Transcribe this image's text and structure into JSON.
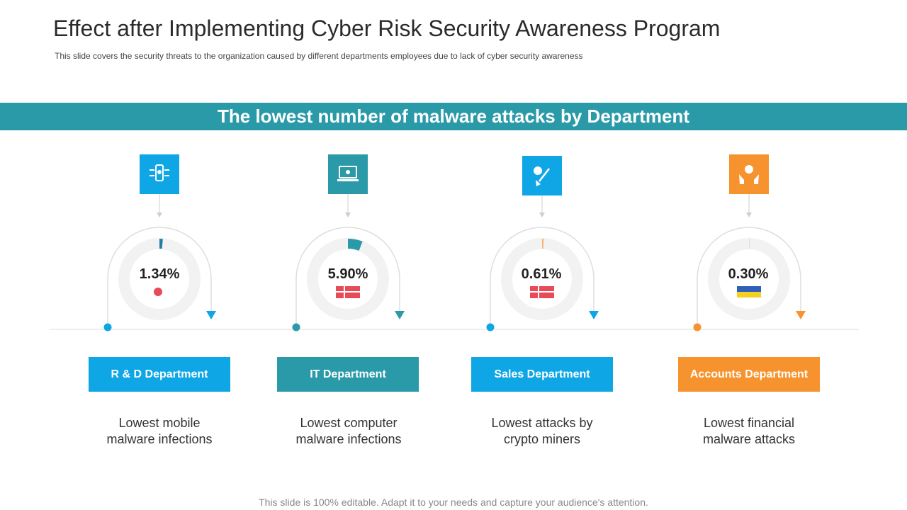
{
  "header": {
    "title": "Effect after Implementing Cyber Risk Security Awareness Program",
    "subtitle": "This slide covers the security threats to the organization caused by different departments employees due to lack of cyber security awareness"
  },
  "banner": {
    "text": "The lowest number of malware attacks by Department"
  },
  "colors": {
    "teal": "#2a9aa8",
    "blue": "#0fa6e6",
    "orange": "#f7932e",
    "red": "#e84b55",
    "yellow": "#f5d020",
    "navy": "#2f5fb8"
  },
  "departments": [
    {
      "name": "R & D Department",
      "percent": "1.34%",
      "percent_value": 1.34,
      "description_line1": "Lowest mobile",
      "description_line2": "malware infections",
      "icon": "mobile-bug-icon",
      "marker": "red-dot",
      "color": "#0fa6e6",
      "gauge_color": "#1e7fa0"
    },
    {
      "name": "IT Department",
      "percent": "5.90%",
      "percent_value": 5.9,
      "description_line1": "Lowest computer",
      "description_line2": "malware infections",
      "icon": "laptop-bug-icon",
      "marker": "red-flag",
      "color": "#2a9aa8",
      "gauge_color": "#2a9aa8"
    },
    {
      "name": "Sales Department",
      "percent": "0.61%",
      "percent_value": 0.61,
      "description_line1": "Lowest attacks by",
      "description_line2": "crypto miners",
      "icon": "crypto-mining-icon",
      "marker": "red-flag",
      "color": "#0fa6e6",
      "gauge_color": "#f7b26a"
    },
    {
      "name": "Accounts  Department",
      "percent": "0.30%",
      "percent_value": 0.3,
      "description_line1": "Lowest financial",
      "description_line2": "malware attacks",
      "icon": "money-hands-icon",
      "marker": "blue-yellow-flag",
      "color": "#f7932e",
      "gauge_color": "#c9e4ea"
    }
  ],
  "footer": {
    "text": "This slide is 100% editable. Adapt it to your needs and capture your audience's attention."
  }
}
